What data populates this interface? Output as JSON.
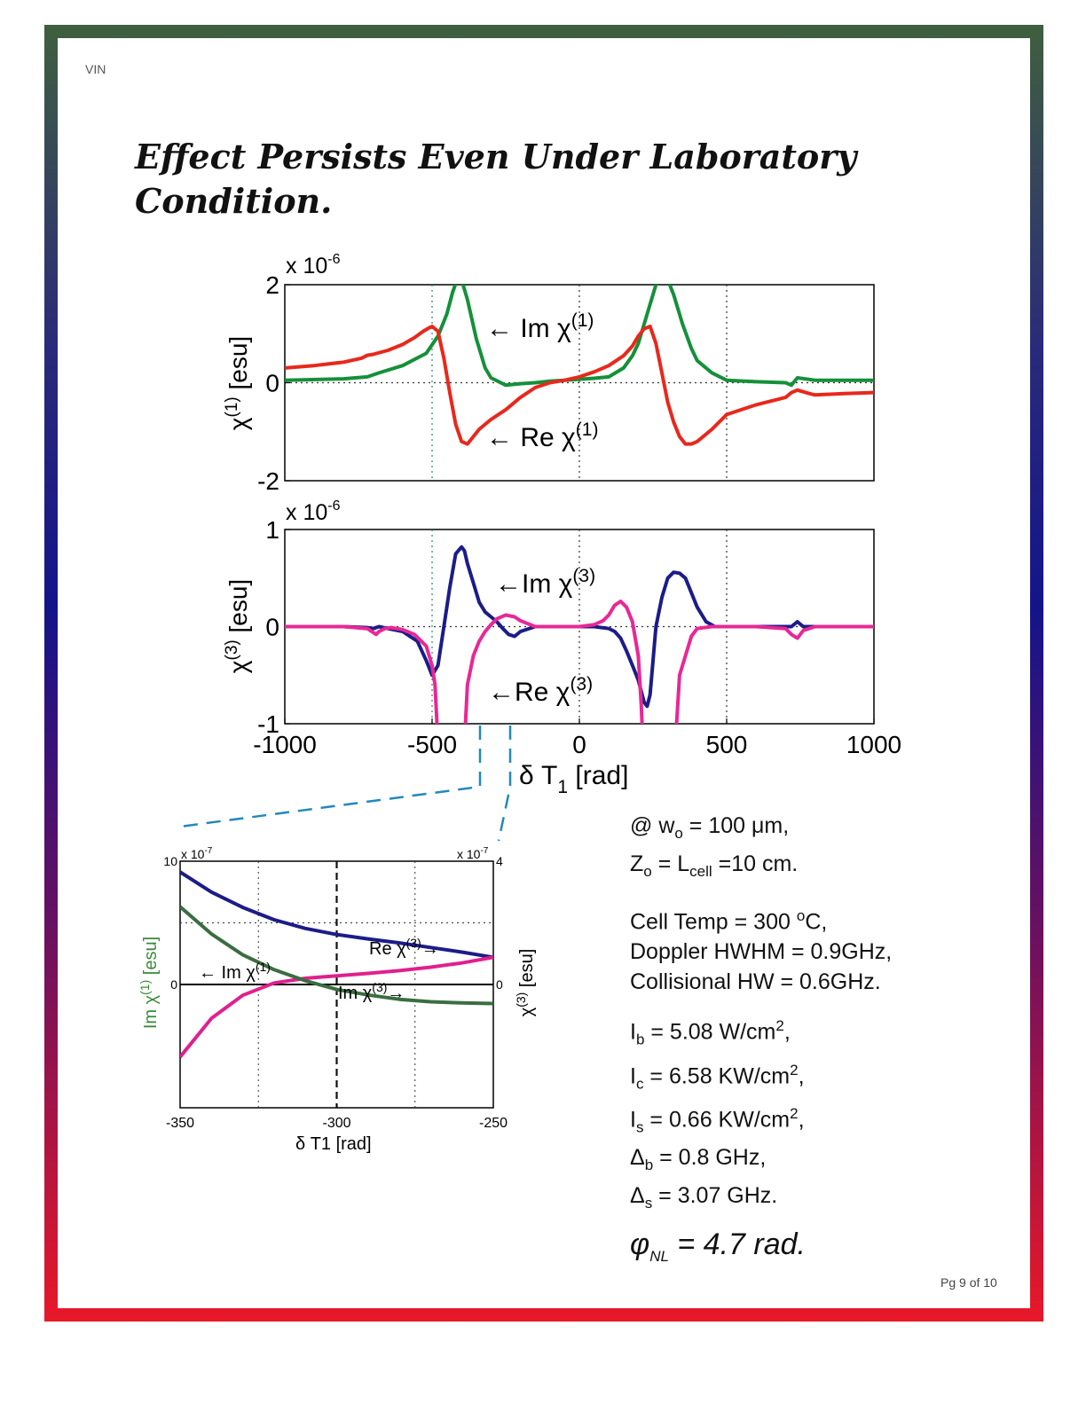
{
  "page": {
    "header_tag": "VIN",
    "title": "Effect Persists Even Under Laboratory Condition.",
    "page_number": "Pg 9 of 10"
  },
  "parameters": {
    "waist": "@ w",
    "waist_sub": "o",
    "waist_value": " = 100 μm,",
    "z_label": "Z",
    "z_sub": "o",
    "z_eq": " = L",
    "z_cell_sub": "cell",
    "z_value": " =10 cm.",
    "cell_temp": "Cell Temp = 300 ",
    "cell_temp_sup": "o",
    "cell_temp_unit": "C,",
    "doppler": "Doppler HWHM = 0.9GHz,",
    "collisional": "Collisional HW = 0.6GHz.",
    "ib_label": "I",
    "ib_sub": "b",
    "ib_value": " = 5.08 W/cm",
    "ib_sup": "2",
    "ib_end": ",",
    "ic_label": "I",
    "ic_sub": "c",
    "ic_value": " = 6.58 KW/cm",
    "ic_sup": "2",
    "ic_end": ",",
    "is_label": "I",
    "is_sub": "s",
    "is_value": " = 0.66 KW/cm",
    "is_sup": "2",
    "is_end": ",",
    "db_label": "Δ",
    "db_sub": "b",
    "db_value": " = 0.8 GHz,",
    "ds_label": "Δ",
    "ds_sub": "s",
    "ds_value": " = 3.07 GHz.",
    "phi_symbol": "φ",
    "phi_sub": "NL",
    "phi_value": " = 4.7 rad."
  },
  "chart_data": [
    {
      "type": "line",
      "name_panel": "chi1",
      "exponent_label": "x 10",
      "exponent_sup": "-6",
      "ylabel": "χ",
      "ylabel_sup": "(1)",
      "ylabel_unit": " [esu]",
      "xlim": [
        -1000,
        1000
      ],
      "ylim": [
        -2,
        2
      ],
      "yticks": [
        "2",
        "0",
        "-2"
      ],
      "ytick_values": [
        2,
        0,
        -2
      ],
      "grid": "dotted at x = -500, 0, 500 and y = 0",
      "series": [
        {
          "name": "Im χ(1)",
          "color": "#15903a",
          "x": [
            -1000,
            -800,
            -720,
            -680,
            -600,
            -520,
            -480,
            -450,
            -430,
            -415,
            -400,
            -380,
            -350,
            -320,
            -300,
            -250,
            -200,
            -150,
            -100,
            -50,
            0,
            50,
            100,
            150,
            180,
            200,
            230,
            260,
            280,
            300,
            320,
            350,
            380,
            400,
            450,
            500,
            600,
            700,
            720,
            740,
            800,
            1000
          ],
          "y": [
            0.05,
            0.08,
            0.12,
            0.2,
            0.35,
            0.6,
            0.95,
            1.4,
            1.85,
            2.1,
            2.1,
            1.7,
            0.9,
            0.3,
            0.1,
            -0.05,
            -0.02,
            0.0,
            0.03,
            0.05,
            0.07,
            0.09,
            0.12,
            0.3,
            0.55,
            0.8,
            1.4,
            2.0,
            2.1,
            2.1,
            1.8,
            1.2,
            0.7,
            0.45,
            0.2,
            0.05,
            0.02,
            0.0,
            -0.05,
            0.1,
            0.05,
            0.05
          ]
        },
        {
          "name": "Re χ(1)",
          "color": "#e8281c",
          "x": [
            -1000,
            -900,
            -800,
            -740,
            -720,
            -700,
            -650,
            -600,
            -560,
            -530,
            -510,
            -500,
            -480,
            -460,
            -440,
            -420,
            -400,
            -380,
            -360,
            -340,
            -300,
            -250,
            -200,
            -150,
            -100,
            -50,
            0,
            50,
            100,
            150,
            180,
            200,
            220,
            240,
            260,
            280,
            300,
            320,
            340,
            360,
            380,
            400,
            450,
            500,
            600,
            700,
            720,
            740,
            780,
            800,
            900,
            1000
          ],
          "y": [
            0.3,
            0.35,
            0.42,
            0.5,
            0.56,
            0.58,
            0.66,
            0.78,
            0.92,
            1.05,
            1.12,
            1.15,
            1.05,
            0.5,
            -0.2,
            -0.85,
            -1.2,
            -1.25,
            -1.1,
            -0.95,
            -0.75,
            -0.55,
            -0.3,
            -0.1,
            0.0,
            0.05,
            0.12,
            0.22,
            0.35,
            0.55,
            0.75,
            0.95,
            1.1,
            1.15,
            0.8,
            0.2,
            -0.4,
            -0.8,
            -1.1,
            -1.25,
            -1.25,
            -1.2,
            -0.95,
            -0.65,
            -0.45,
            -0.3,
            -0.2,
            -0.15,
            -0.22,
            -0.25,
            -0.22,
            -0.2
          ]
        }
      ],
      "annotations": [
        {
          "text": "← Im χ",
          "sup": "(1)"
        },
        {
          "text": "← Re χ",
          "sup": "(1)"
        }
      ]
    },
    {
      "type": "line",
      "name_panel": "chi3",
      "exponent_label": "x 10",
      "exponent_sup": "-6",
      "ylabel": "χ",
      "ylabel_sup": "(3)",
      "ylabel_unit": " [esu]",
      "xlabel": "δ T",
      "xlabel_sub": "1",
      "xlabel_unit": " [rad]",
      "xlim": [
        -1000,
        1000
      ],
      "ylim": [
        -1,
        1
      ],
      "yticks": [
        "1",
        "0",
        "-1"
      ],
      "ytick_values": [
        1,
        0,
        -1
      ],
      "xticks": [
        "-1000",
        "-500",
        "0",
        "500",
        "1000"
      ],
      "xtick_values": [
        -1000,
        -500,
        0,
        500,
        1000
      ],
      "series": [
        {
          "name": "Im χ(3)",
          "color": "#1c1c88",
          "x": [
            -1000,
            -800,
            -720,
            -700,
            -680,
            -650,
            -600,
            -550,
            -520,
            -500,
            -480,
            -460,
            -440,
            -420,
            -400,
            -390,
            -380,
            -360,
            -340,
            -320,
            -300,
            -280,
            -260,
            -240,
            -220,
            -200,
            -150,
            -100,
            -50,
            0,
            50,
            100,
            120,
            140,
            160,
            180,
            200,
            220,
            230,
            240,
            250,
            260,
            280,
            300,
            320,
            340,
            360,
            380,
            400,
            430,
            460,
            500,
            600,
            700,
            720,
            740,
            760,
            800,
            1000
          ],
          "y": [
            0,
            0,
            -0.01,
            -0.02,
            0.0,
            -0.02,
            -0.05,
            -0.15,
            -0.35,
            -0.5,
            -0.4,
            0.0,
            0.4,
            0.75,
            0.82,
            0.78,
            0.65,
            0.45,
            0.25,
            0.15,
            0.1,
            0.05,
            -0.02,
            -0.08,
            -0.1,
            -0.05,
            0.0,
            0.0,
            0.0,
            0.0,
            0.0,
            -0.02,
            -0.05,
            -0.12,
            -0.25,
            -0.4,
            -0.55,
            -0.78,
            -0.82,
            -0.7,
            -0.35,
            0.0,
            0.3,
            0.5,
            0.56,
            0.55,
            0.5,
            0.35,
            0.2,
            0.05,
            0.0,
            0.0,
            0.0,
            0.0,
            0.0,
            0.05,
            0.0,
            0.0,
            0.0
          ]
        },
        {
          "name": "Re χ(3)",
          "color": "#e82896",
          "x": [
            -1000,
            -800,
            -720,
            -700,
            -690,
            -680,
            -660,
            -640,
            -600,
            -560,
            -520,
            -500,
            -490,
            -480,
            -470,
            -460,
            -420,
            -400,
            -390,
            -380,
            -360,
            -340,
            -320,
            -300,
            -280,
            -250,
            -220,
            -200,
            -150,
            -100,
            -50,
            0,
            50,
            80,
            100,
            120,
            140,
            160,
            180,
            200,
            210,
            220,
            230,
            300,
            320,
            340,
            380,
            400,
            450,
            500,
            600,
            700,
            720,
            740,
            760,
            800,
            1000
          ],
          "y": [
            0,
            0,
            -0.02,
            -0.06,
            -0.08,
            -0.05,
            -0.02,
            -0.01,
            -0.03,
            -0.08,
            -0.2,
            -0.4,
            -0.6,
            -1.2,
            -1.5,
            -1.5,
            -1.5,
            -1.5,
            -1.2,
            -0.6,
            -0.3,
            -0.15,
            -0.05,
            0.02,
            0.08,
            0.12,
            0.1,
            0.06,
            0.0,
            0.0,
            0.0,
            0.0,
            0.02,
            0.06,
            0.12,
            0.22,
            0.26,
            0.2,
            0.05,
            -0.3,
            -0.8,
            -1.5,
            -1.5,
            -1.5,
            -1.5,
            -0.5,
            -0.1,
            -0.02,
            0.0,
            0.0,
            0.0,
            -0.02,
            -0.08,
            -0.12,
            -0.04,
            0.0,
            0.0
          ]
        }
      ],
      "annotations": [
        {
          "text": "←Im χ",
          "sup": "(3)"
        },
        {
          "text": "←Re χ",
          "sup": "(3)"
        }
      ]
    },
    {
      "type": "line",
      "name_panel": "zoom",
      "left_exponent": "x 10",
      "left_exponent_sup": "-7",
      "right_exponent": "x 10",
      "right_exponent_sup": "-7",
      "ylabel_left": "Im χ",
      "ylabel_left_sup": "(1)",
      "ylabel_left_unit": " [esu]",
      "ylabel_right": "χ",
      "ylabel_right_sup": "(3)",
      "ylabel_right_unit": " [esu]",
      "xlabel": "δ T1 [rad]",
      "xlim": [
        -350,
        -250
      ],
      "xticks": [
        "-350",
        "-300",
        "-250"
      ],
      "xtick_values": [
        -350,
        -300,
        -250
      ],
      "ylim_left": [
        -10,
        10
      ],
      "yticks_left": [
        "10",
        "0"
      ],
      "ytick_left_values": [
        10,
        0
      ],
      "ylim_right": [
        -4,
        4
      ],
      "yticks_right": [
        "4",
        "0"
      ],
      "ytick_right_values": [
        4,
        0
      ],
      "series": [
        {
          "name": "Re χ(3)",
          "axis": "right",
          "color": "#1c1c88",
          "x": [
            -350,
            -340,
            -330,
            -320,
            -310,
            -300,
            -290,
            -280,
            -270,
            -260,
            -250
          ],
          "y": [
            3.65,
            3.0,
            2.5,
            2.1,
            1.82,
            1.62,
            1.48,
            1.35,
            1.2,
            1.05,
            0.88
          ]
        },
        {
          "name": "Im χ(3)",
          "axis": "right",
          "color": "#e0208e",
          "x": [
            -350,
            -340,
            -330,
            -320,
            -310,
            -300,
            -290,
            -280,
            -270,
            -260,
            -250
          ],
          "y": [
            -2.35,
            -1.1,
            -0.35,
            0.05,
            0.2,
            0.28,
            0.36,
            0.45,
            0.56,
            0.7,
            0.88
          ]
        },
        {
          "name": "Im χ(1)",
          "axis": "left",
          "color": "#3a6e40",
          "x": [
            -350,
            -340,
            -330,
            -320,
            -310,
            -300,
            -290,
            -280,
            -270,
            -260,
            -250
          ],
          "y": [
            6.3,
            4.1,
            2.4,
            1.2,
            0.3,
            -0.4,
            -0.85,
            -1.2,
            -1.4,
            -1.5,
            -1.55
          ]
        }
      ],
      "annotations": [
        {
          "text": "Re χ",
          "sup": "(3)",
          "arrow": "→"
        },
        {
          "text": "← Im χ",
          "sup": "(1)"
        },
        {
          "text": "Im χ",
          "sup": "(3)",
          "arrow": "→"
        }
      ]
    }
  ]
}
